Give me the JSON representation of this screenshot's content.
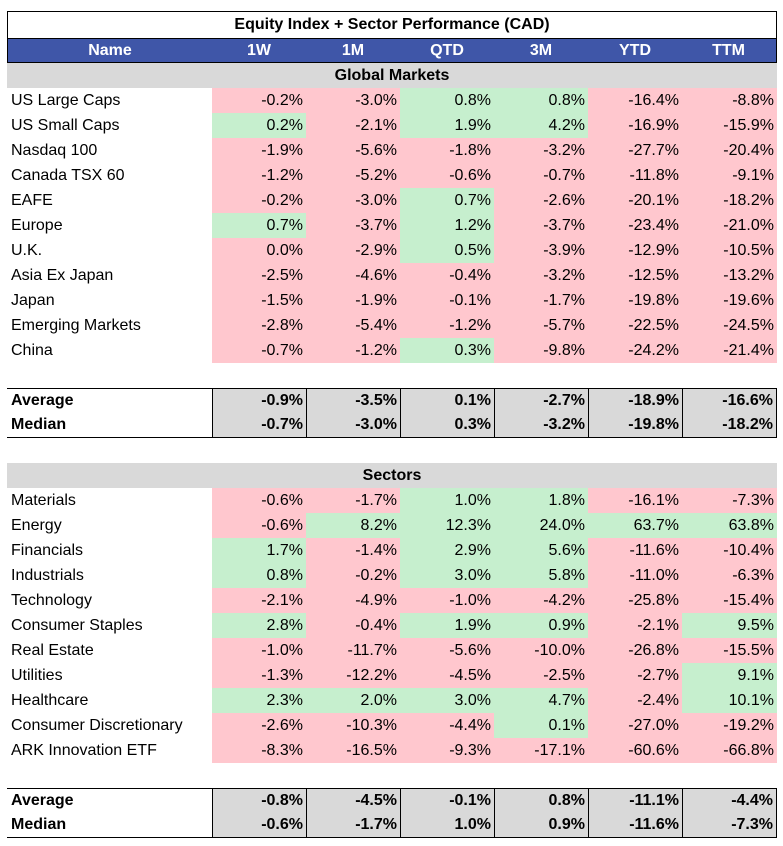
{
  "title": "Equity Index + Sector Performance (CAD)",
  "columns": [
    "Name",
    "1W",
    "1M",
    "QTD",
    "3M",
    "YTD",
    "TTM"
  ],
  "colors": {
    "header_bg": "#3f56a8",
    "positive_bg": "#c6efce",
    "negative_bg": "#ffc7ce",
    "stat_bg": "#d9d9d9"
  },
  "global": {
    "label": "Global Markets",
    "rows": [
      {
        "name": "US Large Caps",
        "v": [
          "-0.2%",
          "-3.0%",
          "0.8%",
          "0.8%",
          "-16.4%",
          "-8.8%"
        ]
      },
      {
        "name": "US Small Caps",
        "v": [
          "0.2%",
          "-2.1%",
          "1.9%",
          "4.2%",
          "-16.9%",
          "-15.9%"
        ]
      },
      {
        "name": "Nasdaq 100",
        "v": [
          "-1.9%",
          "-5.6%",
          "-1.8%",
          "-3.2%",
          "-27.7%",
          "-20.4%"
        ]
      },
      {
        "name": "Canada TSX 60",
        "v": [
          "-1.2%",
          "-5.2%",
          "-0.6%",
          "-0.7%",
          "-11.8%",
          "-9.1%"
        ]
      },
      {
        "name": "EAFE",
        "v": [
          "-0.2%",
          "-3.0%",
          "0.7%",
          "-2.6%",
          "-20.1%",
          "-18.2%"
        ]
      },
      {
        "name": "Europe",
        "v": [
          "0.7%",
          "-3.7%",
          "1.2%",
          "-3.7%",
          "-23.4%",
          "-21.0%"
        ]
      },
      {
        "name": "U.K.",
        "v": [
          "0.0%",
          "-2.9%",
          "0.5%",
          "-3.9%",
          "-12.9%",
          "-10.5%"
        ]
      },
      {
        "name": "Asia Ex Japan",
        "v": [
          "-2.5%",
          "-4.6%",
          "-0.4%",
          "-3.2%",
          "-12.5%",
          "-13.2%"
        ]
      },
      {
        "name": "Japan",
        "v": [
          "-1.5%",
          "-1.9%",
          "-0.1%",
          "-1.7%",
          "-19.8%",
          "-19.6%"
        ]
      },
      {
        "name": "Emerging Markets",
        "v": [
          "-2.8%",
          "-5.4%",
          "-1.2%",
          "-5.7%",
          "-22.5%",
          "-24.5%"
        ]
      },
      {
        "name": "China",
        "v": [
          "-0.7%",
          "-1.2%",
          "0.3%",
          "-9.8%",
          "-24.2%",
          "-21.4%"
        ]
      }
    ],
    "stats": [
      {
        "name": "Average",
        "v": [
          "-0.9%",
          "-3.5%",
          "0.1%",
          "-2.7%",
          "-18.9%",
          "-16.6%"
        ]
      },
      {
        "name": "Median",
        "v": [
          "-0.7%",
          "-3.0%",
          "0.3%",
          "-3.2%",
          "-19.8%",
          "-18.2%"
        ]
      }
    ]
  },
  "sectors": {
    "label": "Sectors",
    "rows": [
      {
        "name": "Materials",
        "v": [
          "-0.6%",
          "-1.7%",
          "1.0%",
          "1.8%",
          "-16.1%",
          "-7.3%"
        ]
      },
      {
        "name": "Energy",
        "v": [
          "-0.6%",
          "8.2%",
          "12.3%",
          "24.0%",
          "63.7%",
          "63.8%"
        ]
      },
      {
        "name": "Financials",
        "v": [
          "1.7%",
          "-1.4%",
          "2.9%",
          "5.6%",
          "-11.6%",
          "-10.4%"
        ]
      },
      {
        "name": "Industrials",
        "v": [
          "0.8%",
          "-0.2%",
          "3.0%",
          "5.8%",
          "-11.0%",
          "-6.3%"
        ]
      },
      {
        "name": "Technology",
        "v": [
          "-2.1%",
          "-4.9%",
          "-1.0%",
          "-4.2%",
          "-25.8%",
          "-15.4%"
        ]
      },
      {
        "name": "Consumer Staples",
        "v": [
          "2.8%",
          "-0.4%",
          "1.9%",
          "0.9%",
          "-2.1%",
          "9.5%"
        ]
      },
      {
        "name": "Real Estate",
        "v": [
          "-1.0%",
          "-11.7%",
          "-5.6%",
          "-10.0%",
          "-26.8%",
          "-15.5%"
        ]
      },
      {
        "name": "Utilities",
        "v": [
          "-1.3%",
          "-12.2%",
          "-4.5%",
          "-2.5%",
          "-2.7%",
          "9.1%"
        ]
      },
      {
        "name": "Healthcare",
        "v": [
          "2.3%",
          "2.0%",
          "3.0%",
          "4.7%",
          "-2.4%",
          "10.1%"
        ]
      },
      {
        "name": "Consumer Discretionary",
        "v": [
          "-2.6%",
          "-10.3%",
          "-4.4%",
          "0.1%",
          "-27.0%",
          "-19.2%"
        ]
      },
      {
        "name": "ARK Innovation ETF",
        "v": [
          "-8.3%",
          "-16.5%",
          "-9.3%",
          "-17.1%",
          "-60.6%",
          "-66.8%"
        ]
      }
    ],
    "stats": [
      {
        "name": "Average",
        "v": [
          "-0.8%",
          "-4.5%",
          "-0.1%",
          "0.8%",
          "-11.1%",
          "-4.4%"
        ]
      },
      {
        "name": "Median",
        "v": [
          "-0.6%",
          "-1.7%",
          "1.0%",
          "0.9%",
          "-11.6%",
          "-7.3%"
        ]
      }
    ]
  }
}
